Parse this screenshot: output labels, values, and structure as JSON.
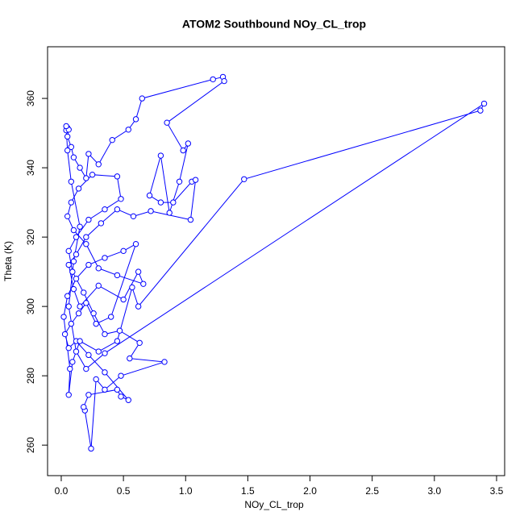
{
  "chart_data": {
    "type": "line",
    "markers": "circle-open",
    "color": "#0000ff",
    "title": "ATOM2 Southbound NOy_CL_trop",
    "x_label": "NOy_CL_trop",
    "y_label": "Theta (K)",
    "xlim": [
      -0.11,
      3.565
    ],
    "ylim": [
      251.2,
      374.9
    ],
    "xticks": [
      {
        "value": 0,
        "label": "0.0"
      },
      0.5,
      {
        "value": 1,
        "label": "1.0"
      },
      1.5,
      {
        "value": 2,
        "label": "2.0"
      },
      2.5,
      {
        "value": 3,
        "label": "3.0"
      },
      3.5
    ],
    "yticks": [
      260,
      280,
      300,
      320,
      340,
      360
    ],
    "x": [
      0.05,
      0.04,
      0.06,
      0.05,
      0.08,
      0.1,
      0.15,
      0.2,
      0.22,
      0.3,
      0.41,
      0.54,
      0.6,
      0.65,
      1.22,
      1.3,
      1.31,
      0.85,
      0.98,
      1.02,
      0.95,
      0.87,
      0.8,
      0.71,
      0.8,
      0.9,
      1.05,
      1.08,
      1.04,
      0.72,
      0.58,
      0.45,
      0.32,
      0.2,
      0.12,
      0.06,
      0.1,
      0.15,
      0.3,
      0.5,
      0.62,
      0.66,
      0.45,
      0.3,
      0.2,
      0.1,
      0.05,
      0.08,
      0.14,
      0.25,
      0.45,
      0.48,
      0.35,
      0.22,
      0.12,
      0.06,
      0.09,
      0.18,
      0.26,
      0.35,
      0.47,
      0.63,
      0.55,
      0.83,
      0.48,
      0.35,
      0.28,
      0.24,
      0.19,
      0.18,
      0.22,
      0.45,
      0.48,
      0.54,
      0.35,
      0.22,
      0.12,
      0.06,
      0.03,
      0.08,
      0.14,
      0.2,
      0.28,
      0.4,
      0.6,
      0.5,
      0.35,
      0.22,
      0.12,
      0.05,
      0.02,
      0.07,
      0.06,
      0.09,
      0.15,
      0.3,
      0.45,
      0.57,
      0.62,
      1.47,
      3.37,
      3.4,
      0.35,
      0.2,
      0.12,
      0.06,
      0.1,
      0.15,
      0.08,
      0.05,
      0.04
    ],
    "y": [
      351.5,
      350.8,
      351,
      349,
      346,
      343,
      340,
      337,
      344,
      341,
      348,
      351,
      354,
      360,
      365.5,
      366.2,
      365,
      353,
      345,
      347,
      336,
      327,
      343.5,
      332,
      330,
      330,
      336,
      336.5,
      325,
      327.5,
      326,
      328,
      324,
      320,
      315,
      312,
      305,
      300,
      306,
      302,
      310,
      306.5,
      309,
      311,
      318,
      322,
      326,
      330,
      334,
      338,
      337.5,
      331,
      328,
      325,
      320,
      316,
      310,
      304,
      298,
      292,
      293,
      289.5,
      285,
      284,
      280,
      276,
      279,
      259,
      270,
      271,
      274.5,
      276,
      274,
      273,
      281,
      286,
      290,
      288,
      292,
      295,
      298,
      301,
      295,
      297,
      318,
      316,
      314,
      312,
      308,
      303,
      297,
      282,
      274.5,
      284,
      290,
      287,
      290,
      305.5,
      300,
      336.7,
      356.5,
      358.5,
      286.5,
      282,
      287,
      300,
      313,
      323,
      336,
      345,
      352
    ]
  }
}
